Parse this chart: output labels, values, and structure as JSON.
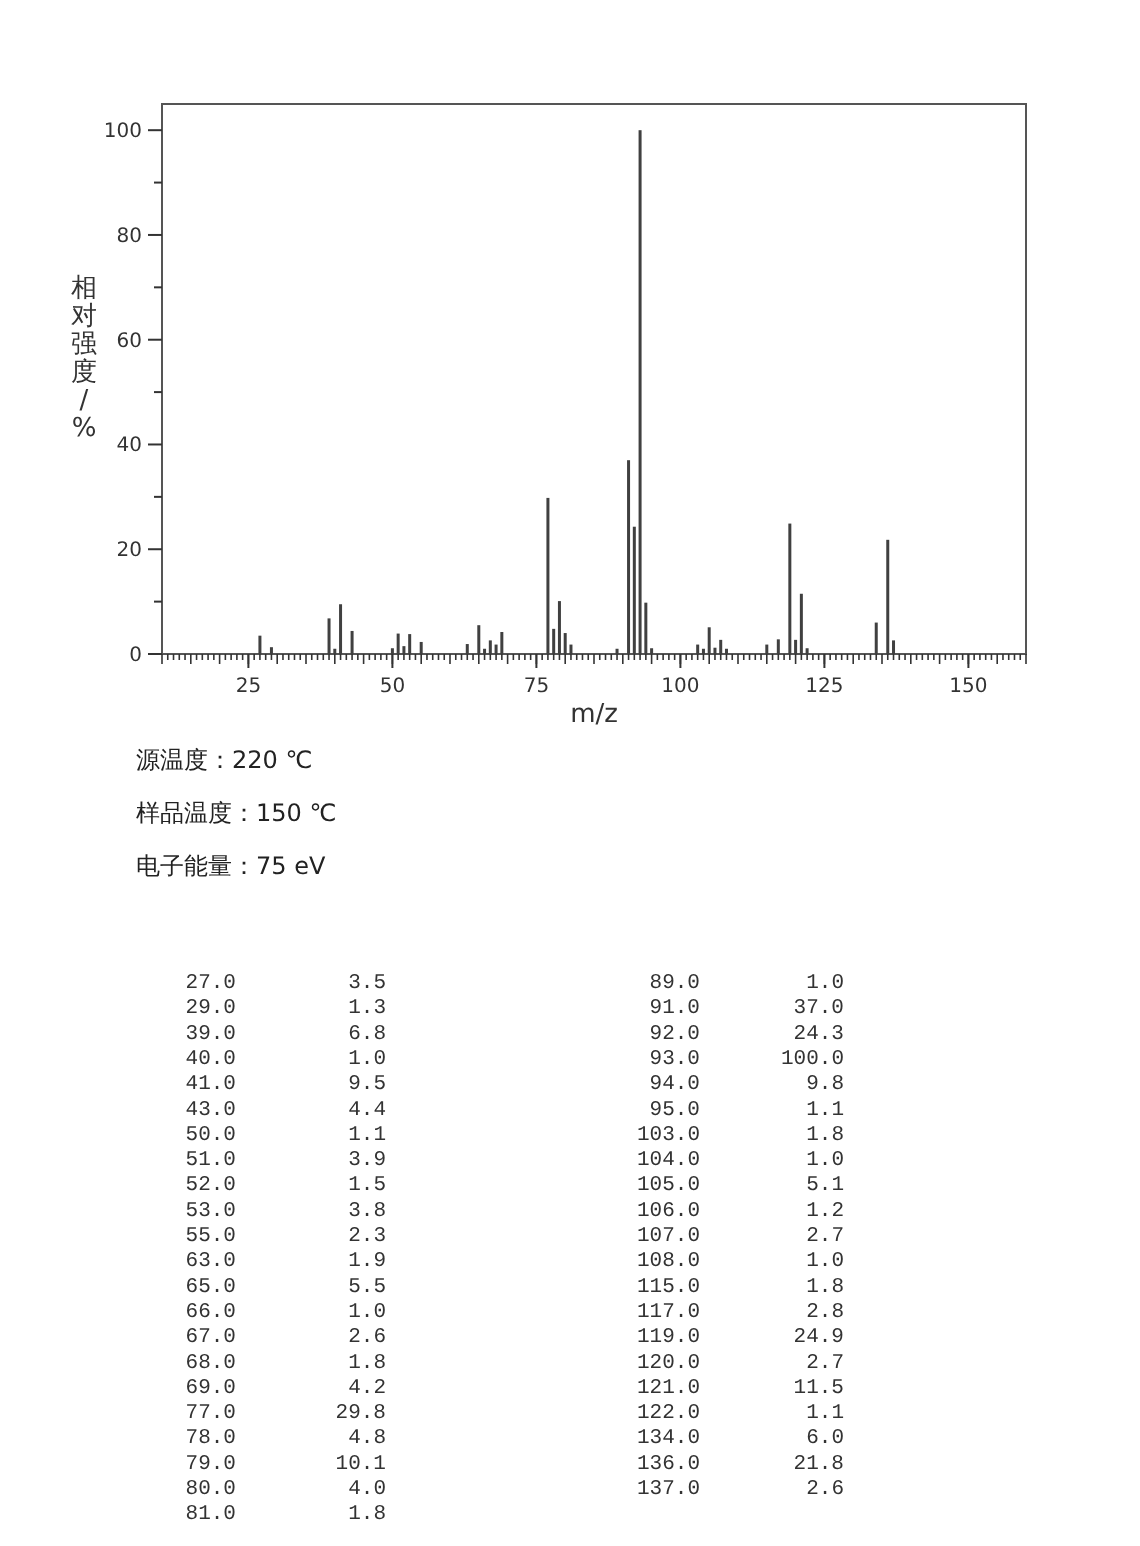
{
  "chart_data": {
    "type": "bar",
    "xlabel": "m/z",
    "ylabel": "相对强度/%",
    "x": [
      27,
      29,
      39,
      40,
      41,
      43,
      50,
      51,
      52,
      53,
      55,
      63,
      65,
      66,
      67,
      68,
      69,
      77,
      78,
      79,
      80,
      81,
      89,
      91,
      92,
      93,
      94,
      95,
      103,
      104,
      105,
      106,
      107,
      108,
      115,
      117,
      119,
      120,
      121,
      122,
      134,
      136,
      137
    ],
    "values": [
      3.5,
      1.3,
      6.8,
      1.0,
      9.5,
      4.4,
      1.1,
      3.9,
      1.5,
      3.8,
      2.3,
      1.9,
      5.5,
      1.0,
      2.6,
      1.8,
      4.2,
      29.8,
      4.8,
      10.1,
      4.0,
      1.8,
      1.0,
      37.0,
      24.3,
      100.0,
      9.8,
      1.1,
      1.8,
      1.0,
      5.1,
      1.2,
      2.7,
      1.0,
      1.8,
      2.8,
      24.9,
      2.7,
      11.5,
      1.1,
      6.0,
      21.8,
      2.6
    ],
    "color": "#404040",
    "xlim": [
      10,
      160
    ],
    "ylim": [
      0,
      105
    ],
    "xticks": [
      25,
      50,
      75,
      100,
      125,
      150
    ],
    "yticks": [
      0,
      20,
      40,
      60,
      80,
      100
    ],
    "annotations": [
      "源温度：220 ℃",
      "样品温度：150 ℃",
      "电子能量：75 eV",
      "27.0",
      "3.5",
      "29.0",
      "1.3",
      "39.0",
      "6.8",
      "40.0",
      "1.0",
      "41.0",
      "9.5",
      "43.0",
      "4.4",
      "50.0",
      "1.1",
      "51.0",
      "3.9",
      "52.0",
      "1.5",
      "53.0",
      "3.8",
      "55.0",
      "2.3",
      "63.0",
      "1.9",
      "65.0",
      "5.5",
      "66.0",
      "1.0",
      "67.0",
      "2.6",
      "68.0",
      "1.8",
      "69.0",
      "4.2",
      "77.0",
      "29.8",
      "78.0",
      "4.8",
      "79.0",
      "10.1",
      "80.0",
      "4.0",
      "81.0",
      "1.8",
      "89.0",
      "1.0",
      "91.0",
      "37.0",
      "92.0",
      "24.3",
      "93.0",
      "100.0",
      "94.0",
      "9.8",
      "95.0",
      "1.1",
      "103.0",
      "1.8",
      "104.0",
      "1.0",
      "105.0",
      "5.1",
      "106.0",
      "1.2",
      "107.0",
      "2.7",
      "108.0",
      "1.0",
      "115.0",
      "1.8",
      "117.0",
      "2.8",
      "119.0",
      "24.9",
      "120.0",
      "2.7",
      "121.0",
      "11.5",
      "122.0",
      "1.1",
      "134.0",
      "6.0",
      "136.0",
      "21.8",
      "137.0",
      "2.6"
    ]
  }
}
